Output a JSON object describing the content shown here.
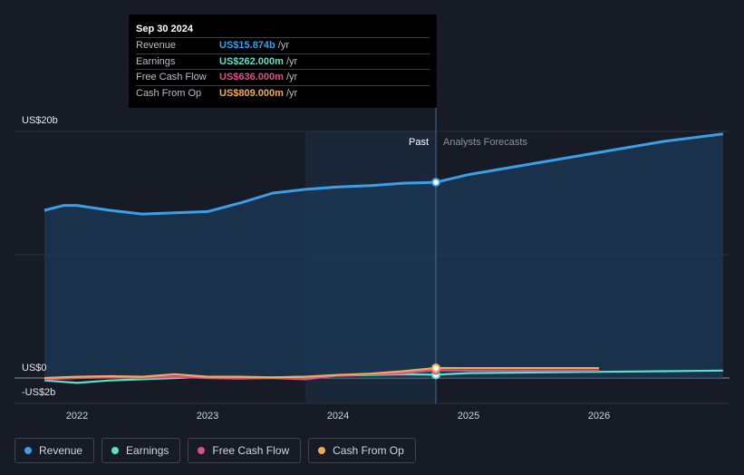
{
  "tooltip": {
    "date": "Sep 30 2024",
    "rows": [
      {
        "label": "Revenue",
        "value": "US$15.874b",
        "unit": "/yr",
        "color": "#3b9ee8"
      },
      {
        "label": "Earnings",
        "value": "US$262.000m",
        "unit": "/yr",
        "color": "#5de0c8"
      },
      {
        "label": "Free Cash Flow",
        "value": "US$636.000m",
        "unit": "/yr",
        "color": "#d9508a"
      },
      {
        "label": "Cash From Op",
        "value": "US$809.000m",
        "unit": "/yr",
        "color": "#f0aa5a"
      }
    ]
  },
  "legend": [
    {
      "label": "Revenue",
      "color": "#3b9ee8"
    },
    {
      "label": "Earnings",
      "color": "#5de0c8"
    },
    {
      "label": "Free Cash Flow",
      "color": "#d9508a"
    },
    {
      "label": "Cash From Op",
      "color": "#f0aa5a"
    }
  ],
  "chart_data": {
    "type": "area",
    "y_labels": [
      "US$20b",
      "US$0",
      "-US$2b"
    ],
    "ylim": [
      -2,
      20
    ],
    "xlim": [
      2021.5,
      2026.95
    ],
    "x_ticks": [
      2022,
      2023,
      2024,
      2025,
      2026
    ],
    "x_tick_labels": [
      "2022",
      "2023",
      "2024",
      "2025",
      "2026"
    ],
    "past_label": "Past",
    "forecast_label": "Analysts Forecasts",
    "divider_x": 2024.75,
    "highlight_start_x": 2023.75,
    "grid": true,
    "series": [
      {
        "name": "Revenue",
        "color": "#3b9ee8",
        "area": true,
        "x": [
          2021.75,
          2021.9,
          2022.0,
          2022.25,
          2022.5,
          2022.75,
          2023.0,
          2023.25,
          2023.5,
          2023.75,
          2024.0,
          2024.25,
          2024.5,
          2024.75,
          2025.0,
          2025.5,
          2026.0,
          2026.5,
          2026.95
        ],
        "y": [
          13.6,
          14.0,
          14.0,
          13.6,
          13.3,
          13.4,
          13.5,
          14.2,
          15.0,
          15.3,
          15.5,
          15.6,
          15.8,
          15.874,
          16.5,
          17.4,
          18.3,
          19.2,
          19.8
        ]
      },
      {
        "name": "Earnings",
        "color": "#5de0c8",
        "area": false,
        "x": [
          2021.75,
          2022.0,
          2022.25,
          2022.5,
          2022.75,
          2023.0,
          2023.25,
          2023.5,
          2023.75,
          2024.0,
          2024.25,
          2024.5,
          2024.75,
          2025.0,
          2025.5,
          2026.0,
          2026.5,
          2026.95
        ],
        "y": [
          -0.2,
          -0.4,
          -0.2,
          -0.1,
          0.0,
          0.1,
          0.0,
          0.05,
          0.1,
          0.2,
          0.25,
          0.3,
          0.262,
          0.4,
          0.45,
          0.5,
          0.55,
          0.6
        ]
      },
      {
        "name": "Free Cash Flow",
        "color": "#d9508a",
        "area": false,
        "x": [
          2021.75,
          2022.0,
          2022.25,
          2022.5,
          2022.75,
          2023.0,
          2023.25,
          2023.5,
          2023.75,
          2024.0,
          2024.25,
          2024.5,
          2024.75,
          2025.0,
          2025.5,
          2026.0
        ],
        "y": [
          -0.1,
          0.0,
          0.05,
          0.0,
          0.1,
          0.0,
          -0.05,
          0.0,
          -0.1,
          0.2,
          0.3,
          0.4,
          0.636,
          0.6,
          0.6,
          0.6
        ]
      },
      {
        "name": "Cash From Op",
        "color": "#f0aa5a",
        "area": false,
        "x": [
          2021.75,
          2022.0,
          2022.25,
          2022.5,
          2022.75,
          2023.0,
          2023.25,
          2023.5,
          2023.75,
          2024.0,
          2024.25,
          2024.5,
          2024.75,
          2025.0,
          2025.5,
          2026.0
        ],
        "y": [
          0.0,
          0.1,
          0.15,
          0.1,
          0.3,
          0.1,
          0.1,
          0.05,
          0.1,
          0.25,
          0.35,
          0.55,
          0.809,
          0.8,
          0.8,
          0.8
        ]
      }
    ]
  }
}
